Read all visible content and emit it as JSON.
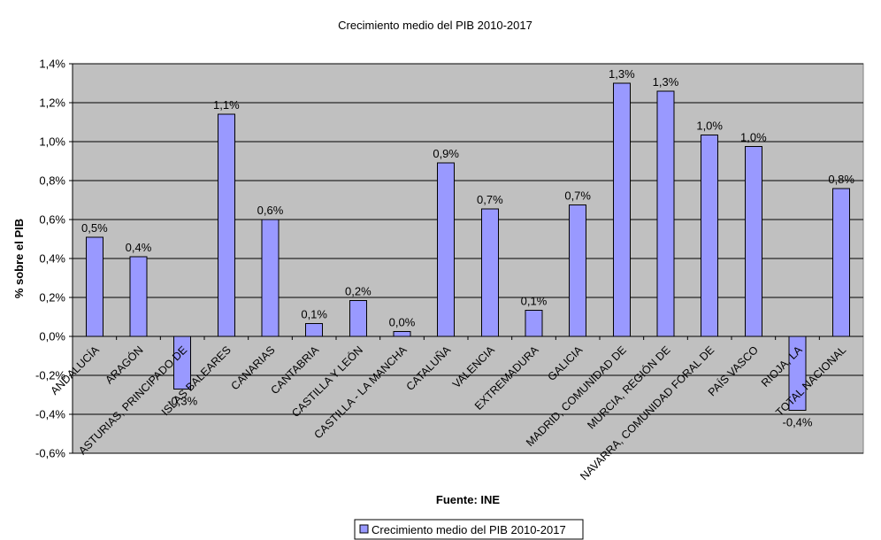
{
  "chart_data": {
    "type": "bar",
    "title": "Crecimiento medio del PIB 2010-2017",
    "xlabel": "Fuente: INE",
    "ylabel": "% sobre el PIB",
    "ylim": [
      -0.6,
      1.4
    ],
    "yticks": [
      -0.6,
      -0.4,
      -0.2,
      0.0,
      0.2,
      0.4,
      0.6,
      0.8,
      1.0,
      1.2,
      1.4
    ],
    "ytick_labels": [
      "-0,6%",
      "-0,4%",
      "-0,2%",
      "0,0%",
      "0,2%",
      "0,4%",
      "0,6%",
      "0,8%",
      "1,0%",
      "1,2%",
      "1,4%"
    ],
    "grid": true,
    "legend_position": "bottom-center",
    "colors": {
      "plot_background": "#c0c0c0",
      "bar_fill": "#9999ff",
      "bar_stroke": "#000000",
      "gridline": "#000000"
    },
    "categories": [
      "ANDALUCÍA",
      "ARAGÓN",
      "ASTURIAS, PRINCIPADO DE",
      "ISLAS BALEARES",
      "CANARIAS",
      "CANTABRIA",
      "CASTILLA Y LEÓN",
      "CASTILLA - LA MANCHA",
      "CATALUÑA",
      "VALENCIA",
      "EXTREMADURA",
      "GALICIA",
      "MADRID, COMUNIDAD DE",
      "MURCIA, REGIÓN DE",
      "NAVARRA, COMUNIDAD FORAL DE",
      "PAÍS VASCO",
      "RIOJA, LA",
      "TOTAL NACIONAL"
    ],
    "series": [
      {
        "name": "Crecimiento medio del PIB 2010-2017",
        "values": [
          0.51,
          0.41,
          -0.27,
          1.14,
          0.6,
          0.065,
          0.185,
          0.025,
          0.89,
          0.655,
          0.135,
          0.675,
          1.3,
          1.26,
          1.035,
          0.975,
          -0.38,
          0.76
        ],
        "labels": [
          "0,5%",
          "0,4%",
          "-0,3%",
          "1,1%",
          "0,6%",
          "0,1%",
          "0,2%",
          "0,0%",
          "0,9%",
          "0,7%",
          "0,1%",
          "0,7%",
          "1,3%",
          "1,3%",
          "1,0%",
          "1,0%",
          "-0,4%",
          "0,8%"
        ]
      }
    ]
  }
}
